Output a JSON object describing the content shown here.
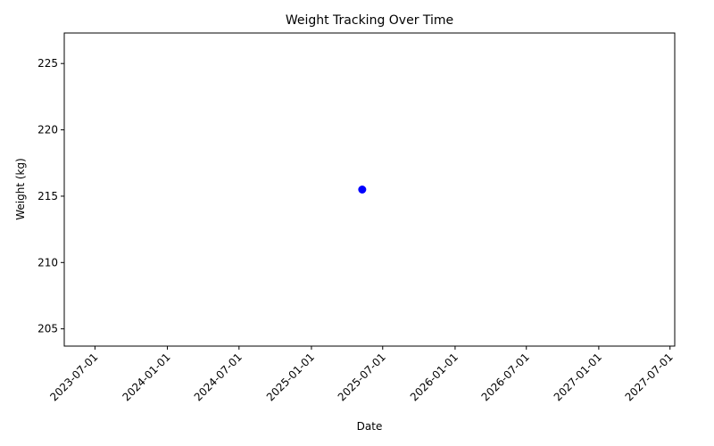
{
  "chart_data": {
    "type": "scatter",
    "title": "Weight Tracking Over Time",
    "xlabel": "Date",
    "ylabel": "Weight (kg)",
    "x_tick_labels": [
      "2023-07-01",
      "2024-01-01",
      "2024-07-01",
      "2025-01-01",
      "2025-07-01",
      "2026-01-01",
      "2026-07-01",
      "2027-01-01",
      "2027-07-01"
    ],
    "y_ticks": [
      205,
      210,
      215,
      220,
      225
    ],
    "xlim": [
      "2023-04-14",
      "2027-07-13"
    ],
    "ylim": [
      203.7,
      227.3
    ],
    "grid": false,
    "series": [
      {
        "points": [
          {
            "x": "2025-05-10",
            "y": 215.5
          }
        ]
      }
    ],
    "colors": {
      "marker": "#0000ff",
      "axes": "#000000",
      "background": "#ffffff"
    }
  }
}
